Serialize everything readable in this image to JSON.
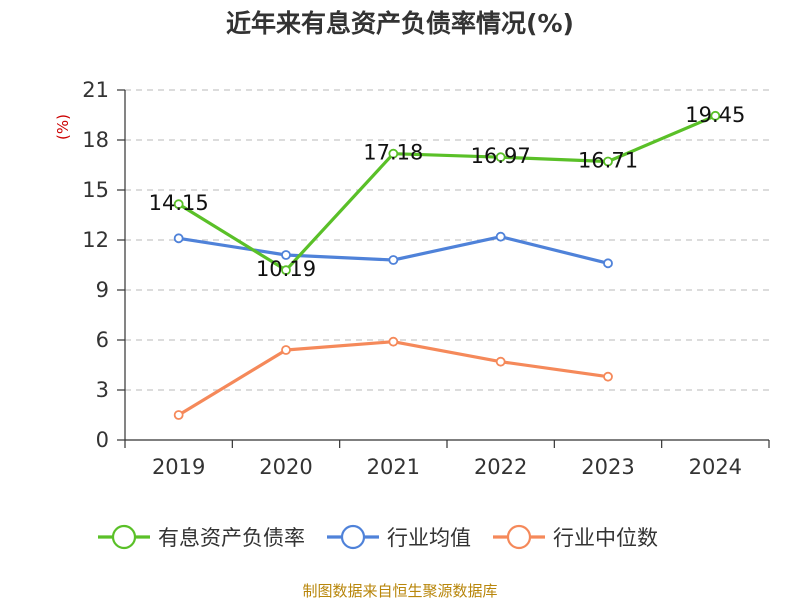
{
  "title": "近年来有息资产负债率情况(%)",
  "source": "制图数据来自恒生聚源数据库",
  "chart_data": {
    "type": "line",
    "title": "近年来有息资产负债率情况(%)",
    "xlabel": "",
    "ylabel": "(%)",
    "ylim": [
      0,
      21
    ],
    "yticks": [
      0,
      3,
      6,
      9,
      12,
      15,
      18,
      21
    ],
    "categories": [
      "2019",
      "2020",
      "2021",
      "2022",
      "2023",
      "2024"
    ],
    "grid": true,
    "legend_position": "bottom",
    "series": [
      {
        "name": "有息资产负债率",
        "color": "#5ac028",
        "values": [
          14.15,
          10.19,
          17.18,
          16.97,
          16.71,
          19.45
        ],
        "labels": [
          "14.15",
          "10.19",
          "17.18",
          "16.97",
          "16.71",
          "19.45"
        ]
      },
      {
        "name": "行业均值",
        "color": "#4f82d9",
        "values": [
          12.1,
          11.1,
          10.8,
          12.2,
          10.6,
          null
        ]
      },
      {
        "name": "行业中位数",
        "color": "#f5895a",
        "values": [
          1.5,
          5.4,
          5.9,
          4.7,
          3.8,
          null
        ]
      }
    ]
  }
}
